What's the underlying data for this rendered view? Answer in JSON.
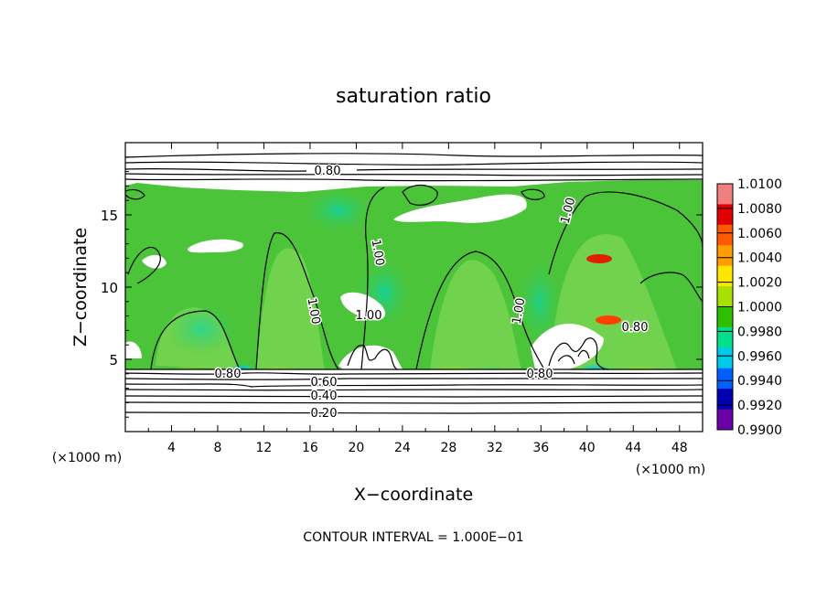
{
  "chart_data": {
    "type": "heatmap",
    "title": "saturation ratio",
    "xlabel": "X−coordinate",
    "ylabel": "Z−coordinate",
    "x_unit_label": "(×1000 m)",
    "z_unit_label": "(×1000 m)",
    "footer": "CONTOUR INTERVAL = 1.000E−01",
    "xlim": [
      0,
      50
    ],
    "zlim": [
      0,
      20
    ],
    "x_ticks": [
      4,
      8,
      12,
      16,
      20,
      24,
      28,
      32,
      36,
      40,
      44,
      48
    ],
    "z_ticks": [
      5,
      10,
      15
    ],
    "contour_labels": [
      "0.80",
      "1.00",
      "1.00",
      "1.00",
      "1.00",
      "1.00",
      "0.80",
      "0.80",
      "0.80",
      "0.60",
      "0.40",
      "0.20"
    ],
    "colorbar": {
      "levels": [
        "1.0100",
        "1.0080",
        "1.0060",
        "1.0040",
        "1.0020",
        "1.0000",
        "0.9980",
        "0.9960",
        "0.9940",
        "0.9920",
        "0.9900"
      ],
      "colors": [
        "#f08080",
        "#e00000",
        "#ff5a00",
        "#ff9c00",
        "#ffe600",
        "#a8e000",
        "#2ec000",
        "#00e08c",
        "#00c8e8",
        "#0060ff",
        "#0000b0",
        "#6a00a8"
      ]
    },
    "colors": {
      "cloud": "#4cc43a",
      "cloud_light": "#76d450",
      "dry": "#ffffff",
      "contour": "#000000"
    }
  }
}
